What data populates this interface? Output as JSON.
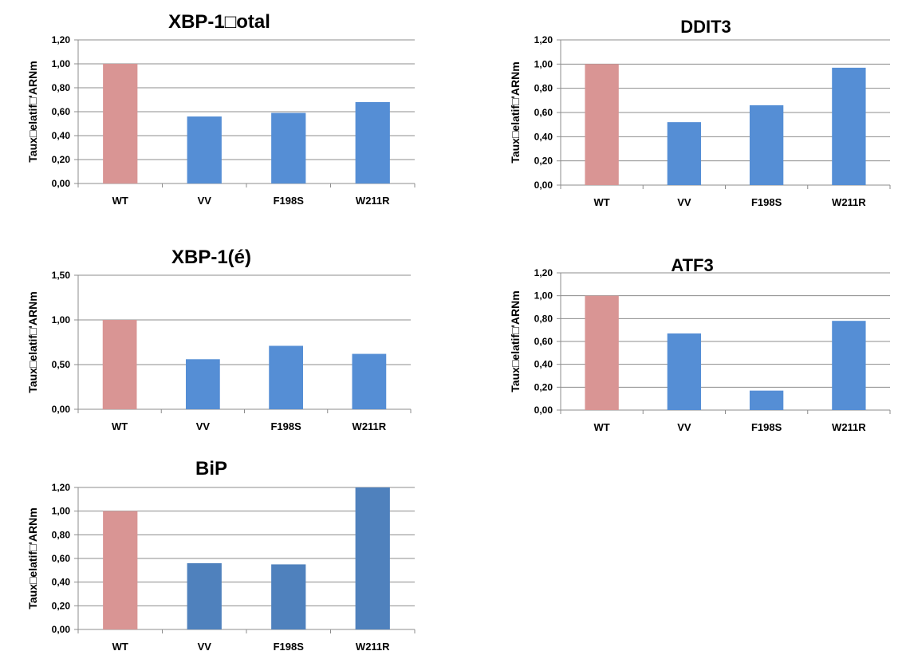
{
  "chart_data": [
    {
      "type": "bar",
      "title": "XBP-1□otal",
      "ylabel": "Taux□elatif□'ARNm",
      "categories": [
        "WT",
        "VV",
        "F198S",
        "W211R"
      ],
      "values": [
        1.0,
        0.56,
        0.59,
        0.68
      ],
      "ylim": [
        0,
        1.2
      ],
      "yticks": [
        "0,00",
        "0,20",
        "0,40",
        "0,60",
        "0,80",
        "1,00",
        "1,20"
      ],
      "grid": true,
      "bar_colors": [
        "#d99594",
        "#558ed5",
        "#558ed5",
        "#558ed5"
      ]
    },
    {
      "type": "bar",
      "title": "DDIT3",
      "ylabel": "Taux□elatif□'ARNm",
      "categories": [
        "WT",
        "VV",
        "F198S",
        "W211R"
      ],
      "values": [
        1.0,
        0.52,
        0.66,
        0.97
      ],
      "ylim": [
        0,
        1.2
      ],
      "yticks": [
        "0,00",
        "0,20",
        "0,40",
        "0,60",
        "0,80",
        "1,00",
        "1,20"
      ],
      "grid": true,
      "bar_colors": [
        "#d99594",
        "#558ed5",
        "#558ed5",
        "#558ed5"
      ]
    },
    {
      "type": "bar",
      "title": "XBP-1(é)",
      "ylabel": "Taux□elatif□'ARNm",
      "categories": [
        "WT",
        "VV",
        "F198S",
        "W211R"
      ],
      "values": [
        1.0,
        0.56,
        0.71,
        0.62
      ],
      "ylim": [
        0,
        1.5
      ],
      "yticks": [
        "0,00",
        "0,50",
        "1,00",
        "1,50"
      ],
      "grid": true,
      "bar_colors": [
        "#d99594",
        "#558ed5",
        "#558ed5",
        "#558ed5"
      ]
    },
    {
      "type": "bar",
      "title": "ATF3",
      "ylabel": "Taux□elatif□'ARNm",
      "categories": [
        "WT",
        "VV",
        "F198S",
        "W211R"
      ],
      "values": [
        1.0,
        0.67,
        0.17,
        0.78
      ],
      "ylim": [
        0,
        1.2
      ],
      "yticks": [
        "0,00",
        "0,20",
        "0,40",
        "0,60",
        "0,80",
        "1,00",
        "1,20"
      ],
      "grid": true,
      "bar_colors": [
        "#d99594",
        "#558ed5",
        "#558ed5",
        "#558ed5"
      ]
    },
    {
      "type": "bar",
      "title": "BiP",
      "ylabel": "Taux□elatif□'ARNm",
      "categories": [
        "WT",
        "VV",
        "F198S",
        "W211R"
      ],
      "values": [
        1.0,
        0.56,
        0.55,
        1.2
      ],
      "ylim": [
        0,
        1.2
      ],
      "yticks": [
        "0,00",
        "0,20",
        "0,40",
        "0,60",
        "0,80",
        "1,00",
        "1,20"
      ],
      "grid": true,
      "bar_colors": [
        "#d99594",
        "#4f81bd",
        "#4f81bd",
        "#4f81bd"
      ]
    }
  ]
}
